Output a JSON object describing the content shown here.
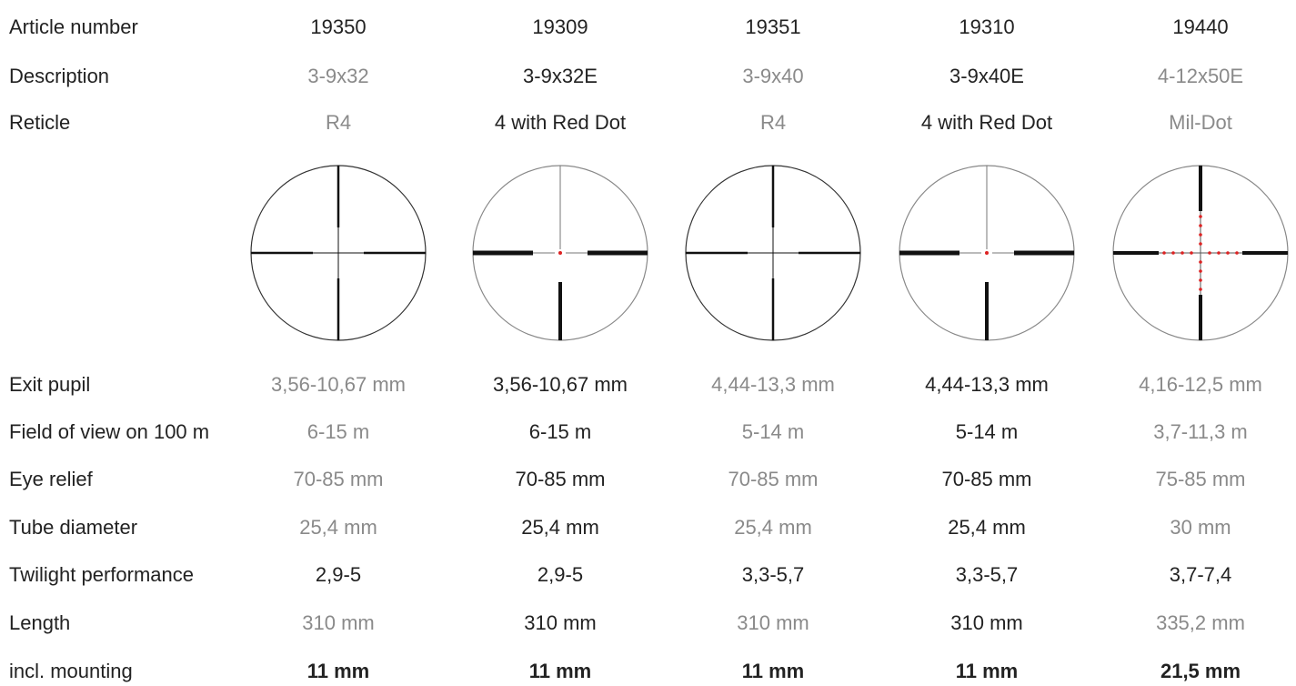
{
  "table": {
    "rows": [
      {
        "label": "Article number",
        "cells": [
          "19350",
          "19309",
          "19351",
          "19310",
          "19440"
        ]
      },
      {
        "label": "Description",
        "cells": [
          "3-9x32",
          "3-9x32E",
          "3-9x40",
          "3-9x40E",
          "4-12x50E"
        ]
      },
      {
        "label": "Reticle",
        "cells": [
          "R4",
          "4 with Red Dot",
          "R4",
          "4 with Red Dot",
          "Mil-Dot"
        ]
      },
      {
        "label": "Exit pupil",
        "cells": [
          "3,56-10,67 mm",
          "3,56-10,67 mm",
          "4,44-13,3 mm",
          "4,44-13,3 mm",
          "4,16-12,5 mm"
        ]
      },
      {
        "label": "Field of view on 100 m",
        "cells": [
          "6-15 m",
          "6-15 m",
          "5-14 m",
          "5-14 m",
          "3,7-11,3 m"
        ]
      },
      {
        "label": "Eye relief",
        "cells": [
          "70-85 mm",
          "70-85 mm",
          "70-85 mm",
          "70-85 mm",
          "75-85 mm"
        ]
      },
      {
        "label": "Tube diameter",
        "cells": [
          "25,4 mm",
          "25,4 mm",
          "25,4 mm",
          "25,4 mm",
          "30 mm"
        ]
      },
      {
        "label": "Twilight performance",
        "cells": [
          "2,9-5",
          "2,9-5",
          "3,3-5,7",
          "3,3-5,7",
          "3,7-7,4"
        ]
      },
      {
        "label": "Length",
        "cells": [
          "310 mm",
          "310 mm",
          "310 mm",
          "310 mm",
          "335,2 mm"
        ]
      },
      {
        "label": "incl. mounting",
        "cells": [
          "11 mm",
          "11 mm",
          "11 mm",
          "11 mm",
          "21,5 mm"
        ]
      }
    ]
  }
}
